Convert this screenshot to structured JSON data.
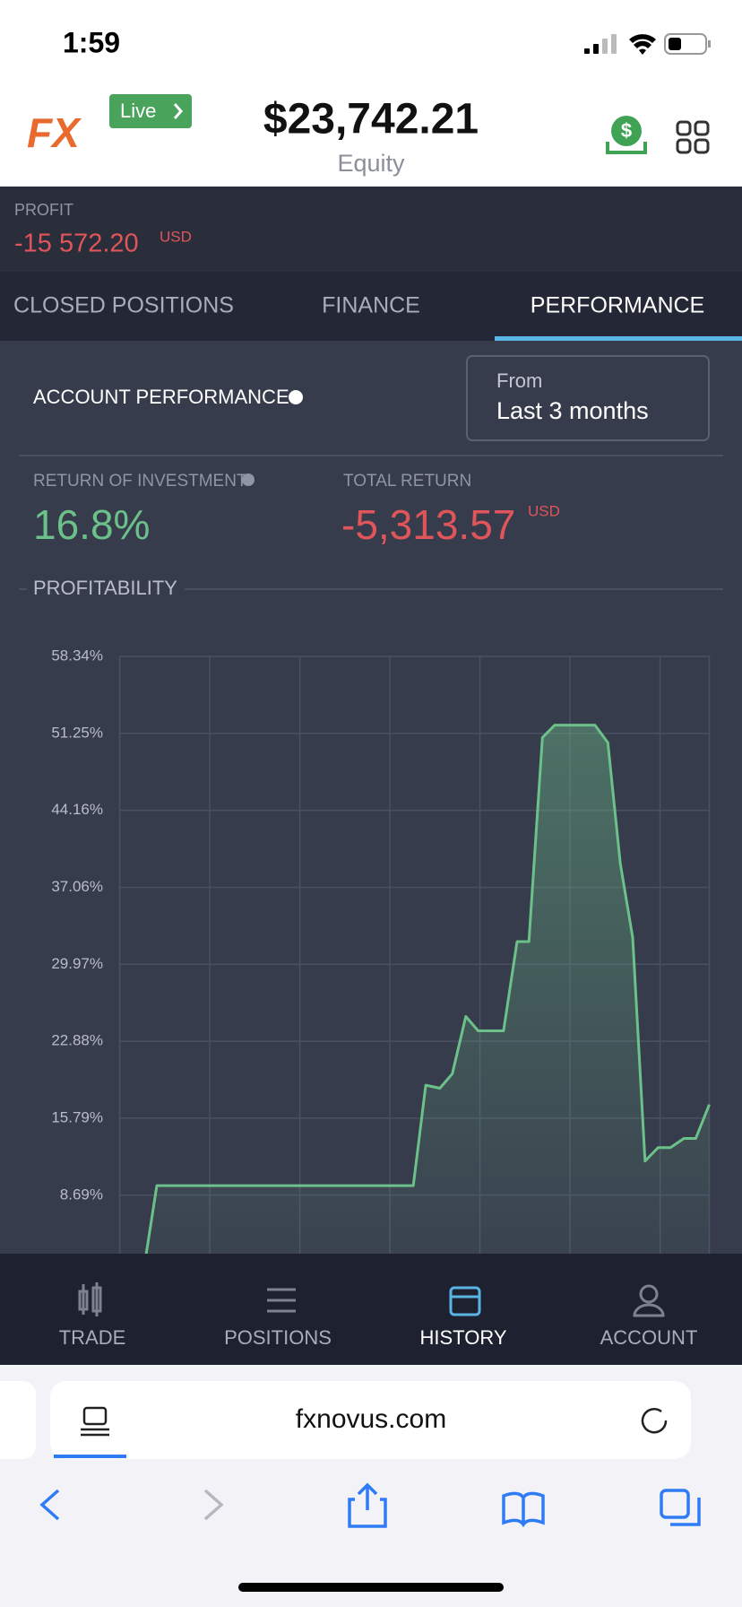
{
  "status_bar": {
    "time": "1:59"
  },
  "header": {
    "logo": "FX",
    "account_type": "Live",
    "equity": "$23,742.21",
    "equity_label": "Equity"
  },
  "profit": {
    "label": "PROFIT",
    "value": "-15 572.20",
    "currency": "USD"
  },
  "tabs": [
    "CLOSED POSITIONS",
    "FINANCE",
    "PERFORMANCE"
  ],
  "performance": {
    "title": "ACCOUNT PERFORMANCE",
    "period_label": "From",
    "period": "Last 3 months",
    "roi_label": "RETURN OF INVESTMENT",
    "roi": "16.8%",
    "total_return_label": "TOTAL RETURN",
    "total_return": "-5,313.57",
    "total_return_currency": "USD",
    "section": "PROFITABILITY"
  },
  "chart_data": {
    "type": "area",
    "color": "#6cc18a",
    "grid": true,
    "x": [
      4.5,
      6.3,
      49.8,
      51.9,
      54.3,
      56.4,
      58.7,
      60.8,
      65.1,
      67.4,
      69.4,
      71.7,
      73.8,
      80.6,
      82.8,
      84.9,
      87.0,
      89.1,
      91.3,
      93.4,
      95.7,
      97.7,
      100
    ],
    "values": [
      3.3,
      9.57,
      9.57,
      18.83,
      18.55,
      19.87,
      25.16,
      23.84,
      23.84,
      32.06,
      32.06,
      50.87,
      52.01,
      52.01,
      50.4,
      39.25,
      32.44,
      11.84,
      13.07,
      13.07,
      13.92,
      13.92,
      17.04
    ],
    "xlim": [
      0,
      100
    ],
    "ylim": [
      3.3,
      58.34
    ],
    "yticks": [
      {
        "value": 8.69,
        "label": "8.69%"
      },
      {
        "value": 15.79,
        "label": "15.79%"
      },
      {
        "value": 22.88,
        "label": "22.88%"
      },
      {
        "value": 29.97,
        "label": "29.97%"
      },
      {
        "value": 37.06,
        "label": "37.06%"
      },
      {
        "value": 44.16,
        "label": "44.16%"
      },
      {
        "value": 51.25,
        "label": "51.25%"
      },
      {
        "value": 58.34,
        "label": "58.34%"
      }
    ]
  },
  "nav": [
    "TRADE",
    "POSITIONS",
    "HISTORY",
    "ACCOUNT"
  ],
  "browser": {
    "url": "fxnovus.com"
  }
}
